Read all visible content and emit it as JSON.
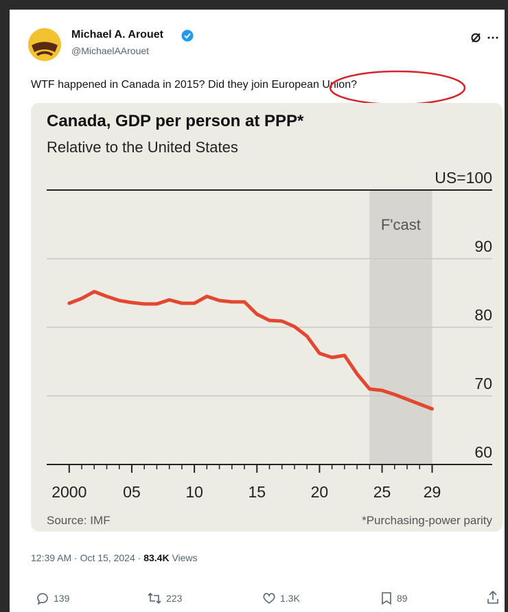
{
  "tweet": {
    "name": "Michael A. Arouet",
    "handle": "@MichaelAArouet",
    "text": "WTF happened in Canada in 2015? Did they join European Union?",
    "timestamp": "12:39 AM · Oct 15, 2024 ·",
    "views": "83.4K",
    "views_label": "Views",
    "replies": "139",
    "reposts": "223",
    "likes": "1.3K",
    "bookmarks": "89"
  },
  "chart_data": {
    "type": "line",
    "title": "Canada, GDP per person at PPP*",
    "subtitle": "Relative to the United States",
    "source": "Source: IMF",
    "footnote": "*Purchasing-power parity",
    "forecast": {
      "label": "F'cast",
      "start": 2024,
      "end": 2029
    },
    "x": [
      2000,
      2001,
      2002,
      2003,
      2004,
      2005,
      2006,
      2007,
      2008,
      2009,
      2010,
      2011,
      2012,
      2013,
      2014,
      2015,
      2016,
      2017,
      2018,
      2019,
      2020,
      2021,
      2022,
      2023,
      2024,
      2025,
      2026,
      2027,
      2028,
      2029
    ],
    "values": [
      83.5,
      84.2,
      85.2,
      84.5,
      83.9,
      83.6,
      83.4,
      83.4,
      84.0,
      83.5,
      83.5,
      84.5,
      83.9,
      83.7,
      83.7,
      81.9,
      81.0,
      80.9,
      80.1,
      78.7,
      76.2,
      75.6,
      75.9,
      73.2,
      71.0,
      70.8,
      70.2,
      69.5,
      68.8,
      68.1
    ],
    "color": "#e3472f",
    "xlim": [
      1998.2,
      2033.8
    ],
    "xticks": [
      2000,
      {
        "value": 2005,
        "label": "05"
      },
      {
        "value": 2010,
        "label": "10"
      },
      {
        "value": 2015,
        "label": "15"
      },
      {
        "value": 2020,
        "label": "20"
      },
      {
        "value": 2025,
        "label": "25"
      },
      {
        "value": 2029,
        "label": "29"
      }
    ],
    "ylim": [
      60,
      100
    ],
    "yticks": [
      60,
      70,
      80,
      90,
      {
        "value": 100,
        "label": "US=100"
      }
    ],
    "grid": true
  }
}
